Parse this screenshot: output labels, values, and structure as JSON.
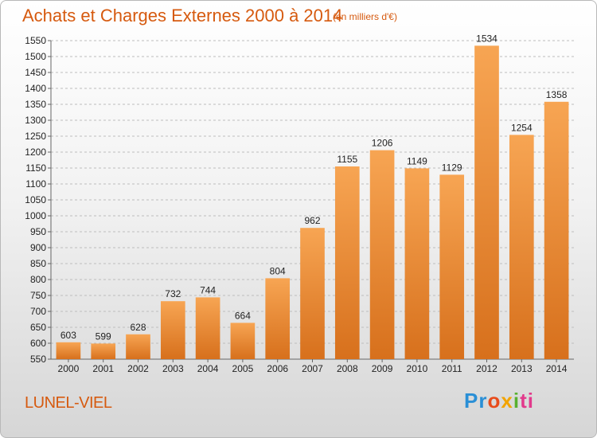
{
  "header": {
    "title": "Achats et Charges Externes 2000 à 2014",
    "unit": "(en milliers d'€)"
  },
  "footer": {
    "commune": "LUNEL-VIEL",
    "brand": {
      "letters": [
        "Pr",
        "o",
        "x",
        "i",
        "ti"
      ]
    }
  },
  "colors": {
    "accent": "#d65a0f",
    "bar_top": "#f7a553",
    "bar_bottom": "#d7701c",
    "grid": "#bdbdbd"
  },
  "chart_data": {
    "type": "bar",
    "title": "Achats et Charges Externes 2000 à 2014",
    "subtitle": "(en milliers d'€)",
    "categories": [
      "2000",
      "2001",
      "2002",
      "2003",
      "2004",
      "2005",
      "2006",
      "2007",
      "2008",
      "2009",
      "2010",
      "2011",
      "2012",
      "2013",
      "2014"
    ],
    "values": [
      603,
      599,
      628,
      732,
      744,
      664,
      804,
      962,
      1155,
      1206,
      1149,
      1129,
      1534,
      1254,
      1358
    ],
    "xlabel": "",
    "ylabel": "",
    "ylim": [
      550,
      1550
    ],
    "ytick_step": 50,
    "grid": true,
    "data_labels": true
  }
}
